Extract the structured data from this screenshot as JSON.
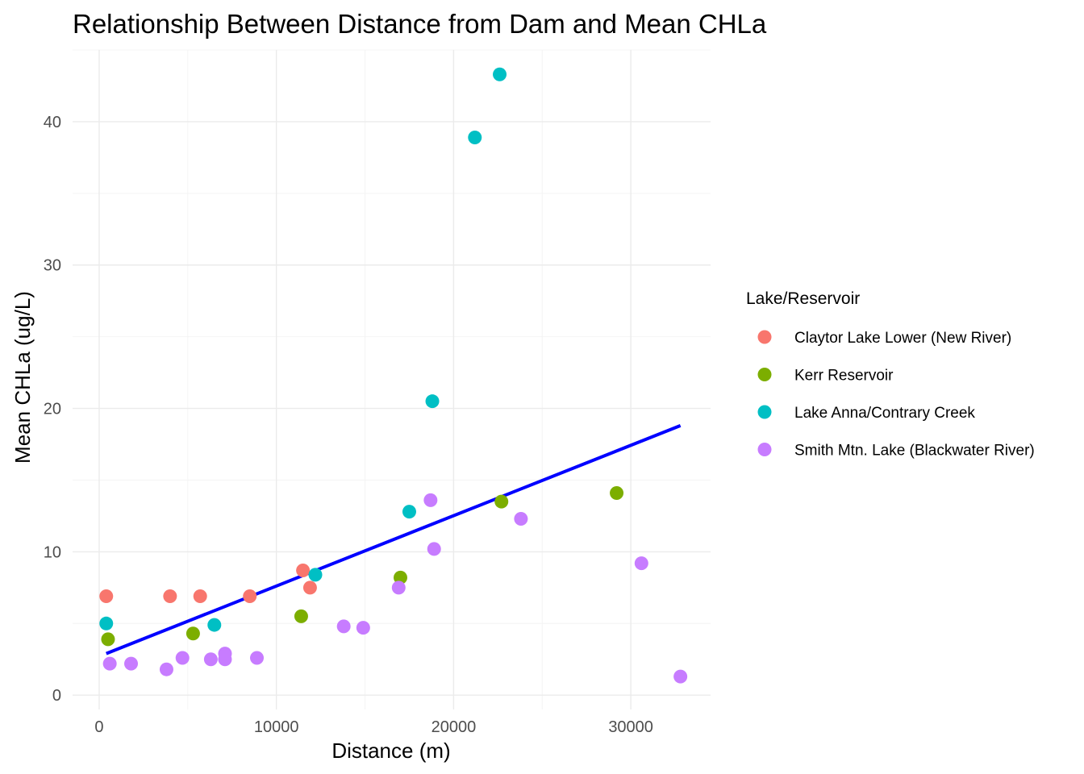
{
  "chart_data": {
    "type": "scatter",
    "title": "Relationship Between Distance from Dam and Mean CHLa",
    "xlabel": "Distance (m)",
    "ylabel": "Mean CHLa (ug/L)",
    "xlim": [
      -1500,
      34500
    ],
    "ylim": [
      -1,
      45
    ],
    "x_ticks": [
      0,
      10000,
      20000,
      30000
    ],
    "x_tick_labels": [
      "0",
      "10000",
      "20000",
      "30000"
    ],
    "y_ticks": [
      0,
      10,
      20,
      30,
      40
    ],
    "y_tick_labels": [
      "0",
      "10",
      "20",
      "30",
      "40"
    ],
    "grid": true,
    "legend": {
      "title": "Lake/Reservoir",
      "placement": "right"
    },
    "series": [
      {
        "name": "Claytor Lake Lower (New River)",
        "color": "#F8766D",
        "points": [
          [
            400,
            6.9
          ],
          [
            4000,
            6.9
          ],
          [
            5700,
            6.9
          ],
          [
            8500,
            6.9
          ],
          [
            11500,
            8.7
          ],
          [
            11900,
            7.5
          ]
        ]
      },
      {
        "name": "Kerr Reservoir",
        "color": "#7CAE00",
        "points": [
          [
            500,
            3.9
          ],
          [
            5300,
            4.3
          ],
          [
            11400,
            5.5
          ],
          [
            17000,
            8.2
          ],
          [
            22700,
            13.5
          ],
          [
            29200,
            14.1
          ]
        ]
      },
      {
        "name": "Lake Anna/Contrary Creek",
        "color": "#00BFC4",
        "points": [
          [
            400,
            5.0
          ],
          [
            6500,
            4.9
          ],
          [
            12200,
            8.4
          ],
          [
            17500,
            12.8
          ],
          [
            18800,
            20.5
          ],
          [
            21200,
            38.9
          ],
          [
            22600,
            43.3
          ]
        ]
      },
      {
        "name": "Smith Mtn. Lake (Blackwater River)",
        "color": "#C77CFF",
        "points": [
          [
            600,
            2.2
          ],
          [
            1800,
            2.2
          ],
          [
            3800,
            1.8
          ],
          [
            4700,
            2.6
          ],
          [
            6300,
            2.5
          ],
          [
            7100,
            2.9
          ],
          [
            7100,
            2.5
          ],
          [
            8900,
            2.6
          ],
          [
            13800,
            4.8
          ],
          [
            14900,
            4.7
          ],
          [
            16900,
            7.5
          ],
          [
            18700,
            13.6
          ],
          [
            18900,
            10.2
          ],
          [
            23800,
            12.3
          ],
          [
            30600,
            9.2
          ],
          [
            32800,
            1.3
          ]
        ]
      }
    ],
    "trend_line": {
      "color": "#0000FF",
      "points": [
        [
          400,
          2.9
        ],
        [
          32800,
          18.8
        ]
      ]
    }
  }
}
